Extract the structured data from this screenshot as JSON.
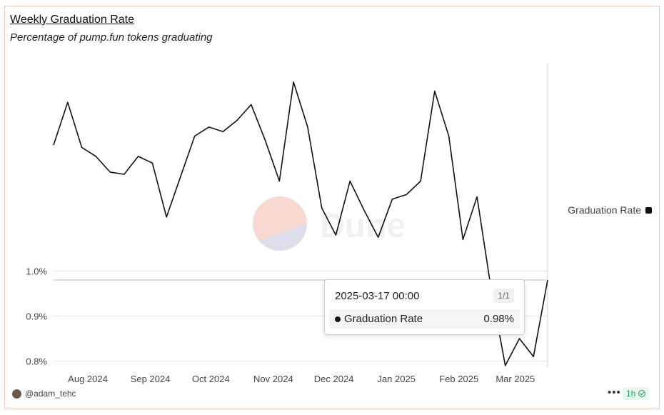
{
  "header": {
    "title": "Weekly Graduation Rate",
    "subtitle": "Percentage of pump.fun tokens graduating"
  },
  "watermark": {
    "text": "Dune"
  },
  "legend": {
    "label": "Graduation Rate"
  },
  "tooltip": {
    "date": "2025-03-17 00:00",
    "count": "1/1",
    "series": "Graduation Rate",
    "value": "0.98%"
  },
  "footer": {
    "user": "@adam_tehc",
    "more": "•••",
    "refresh": "1h"
  },
  "colors": {
    "line": "#111111",
    "grid": "#e6e6e6",
    "watermark_top": "#f7cfc6",
    "watermark_bottom": "#d4d4e6"
  },
  "chart_data": {
    "type": "line",
    "title": "Weekly Graduation Rate",
    "subtitle": "Percentage of pump.fun tokens graduating",
    "xlabel": "",
    "ylabel": "",
    "y_ticks": [
      {
        "value": 0.8,
        "label": "0.8%"
      },
      {
        "value": 0.9,
        "label": "0.9%"
      },
      {
        "value": 1.0,
        "label": "1.0%"
      }
    ],
    "x_ticks": [
      {
        "date": "2024-08-01",
        "label": "Aug 2024"
      },
      {
        "date": "2024-09-01",
        "label": "Sep 2024"
      },
      {
        "date": "2024-10-01",
        "label": "Oct 2024"
      },
      {
        "date": "2024-11-01",
        "label": "Nov 2024"
      },
      {
        "date": "2024-12-01",
        "label": "Dec 2024"
      },
      {
        "date": "2025-01-01",
        "label": "Jan 2025"
      },
      {
        "date": "2025-02-01",
        "label": "Feb 2025"
      },
      {
        "date": "2025-03-01",
        "label": "Mar 2025"
      }
    ],
    "ylim": [
      0.79,
      1.43
    ],
    "grid": true,
    "legend_position": "right",
    "series": [
      {
        "name": "Graduation Rate",
        "x": [
          "2024-07-15",
          "2024-07-22",
          "2024-07-29",
          "2024-08-05",
          "2024-08-12",
          "2024-08-19",
          "2024-08-26",
          "2024-09-02",
          "2024-09-09",
          "2024-09-16",
          "2024-09-23",
          "2024-09-30",
          "2024-10-07",
          "2024-10-14",
          "2024-10-21",
          "2024-10-28",
          "2024-11-04",
          "2024-11-11",
          "2024-11-18",
          "2024-11-25",
          "2024-12-02",
          "2024-12-09",
          "2024-12-16",
          "2024-12-23",
          "2024-12-30",
          "2025-01-06",
          "2025-01-13",
          "2025-01-20",
          "2025-01-27",
          "2025-02-03",
          "2025-02-10",
          "2025-02-17",
          "2025-02-24",
          "2025-03-03",
          "2025-03-10",
          "2025-03-17"
        ],
        "values": [
          1.28,
          1.375,
          1.275,
          1.255,
          1.22,
          1.215,
          1.255,
          1.24,
          1.12,
          1.21,
          1.3,
          1.32,
          1.31,
          1.335,
          1.37,
          1.29,
          1.2,
          1.42,
          1.32,
          1.14,
          1.08,
          1.2,
          1.135,
          1.075,
          1.16,
          1.17,
          1.2,
          1.4,
          1.3,
          1.07,
          1.165,
          0.96,
          0.79,
          0.85,
          0.81,
          0.98
        ]
      }
    ]
  }
}
